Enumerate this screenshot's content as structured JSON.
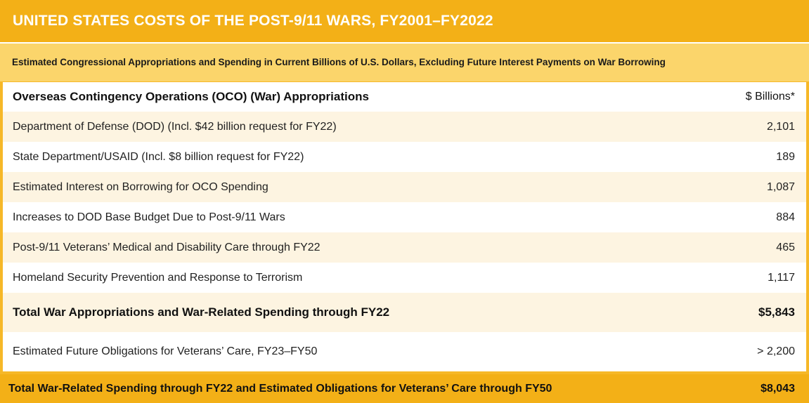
{
  "title": "UNITED STATES COSTS OF THE POST-9/11 WARS, FY2001–FY2022",
  "subtitle": "Estimated Congressional Appropriations and Spending in Current Billions of U.S. Dollars, Excluding Future Interest Payments on War Borrowing",
  "header": {
    "label": "Overseas Contingency Operations (OCO) (War) Appropriations",
    "value": "$ Billions*"
  },
  "rows": [
    {
      "label": "Department of Defense (DOD) (Incl. $42 billion request for FY22)",
      "value": "2,101"
    },
    {
      "label": "State Department/USAID (Incl. $8 billion request for FY22)",
      "value": "189"
    },
    {
      "label": "Estimated Interest on Borrowing for OCO Spending",
      "value": "1,087"
    },
    {
      "label": "Increases to DOD Base Budget Due to Post-9/11 Wars",
      "value": "884"
    },
    {
      "label": "Post-9/11 Veterans’ Medical and Disability Care through FY22",
      "value": "465"
    },
    {
      "label": "Homeland Security Prevention and Response to Terrorism",
      "value": "1,117"
    }
  ],
  "total": {
    "label": "Total War Appropriations and War-Related Spending through FY22",
    "value": "$5,843"
  },
  "future": {
    "label": "Estimated Future Obligations for Veterans’ Care, FY23–FY50",
    "value": "> 2,200"
  },
  "grand_total": {
    "label": "Total War-Related Spending through FY22 and Estimated Obligations for Veterans’ Care through FY50",
    "value": "$8,043"
  }
}
